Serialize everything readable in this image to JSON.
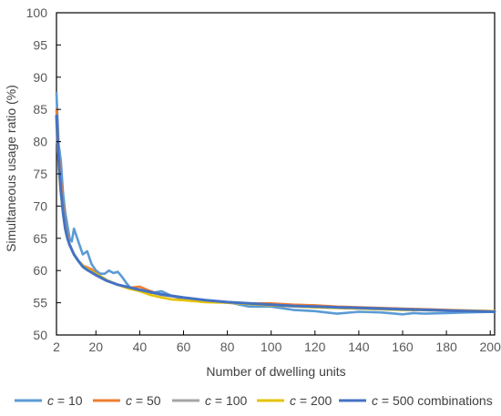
{
  "chart_data": {
    "type": "line",
    "title": "",
    "xlabel": "Number of dwelling units",
    "ylabel": "Simultaneous usage ratio (%)",
    "xlim": [
      2,
      202
    ],
    "ylim": [
      50,
      100
    ],
    "x_ticks": [
      2,
      20,
      40,
      60,
      80,
      100,
      120,
      140,
      160,
      180,
      200
    ],
    "y_ticks": [
      50,
      55,
      60,
      65,
      70,
      75,
      80,
      85,
      90,
      95,
      100
    ],
    "grid": false,
    "legend_position": "bottom",
    "series": [
      {
        "name": "c = 10",
        "legend_var": "c",
        "legend_rest": " = 10",
        "color": "#5B9BD5",
        "x": [
          2,
          3,
          4,
          5,
          6,
          7,
          8,
          9,
          10,
          12,
          14,
          16,
          18,
          20,
          22,
          24,
          26,
          28,
          30,
          32,
          34,
          36,
          40,
          45,
          50,
          55,
          60,
          70,
          80,
          90,
          100,
          110,
          120,
          125,
          130,
          140,
          150,
          160,
          165,
          170,
          180,
          190,
          202
        ],
        "y": [
          87.5,
          79.5,
          77,
          72,
          69,
          67,
          65,
          64.5,
          66.5,
          64.5,
          62.5,
          63,
          61,
          60,
          59.5,
          59.5,
          60,
          59.6,
          59.8,
          59,
          58,
          57.2,
          56.8,
          56.5,
          56.8,
          56,
          55.6,
          55.2,
          55.1,
          54.4,
          54.4,
          53.9,
          53.7,
          53.5,
          53.3,
          53.6,
          53.5,
          53.2,
          53.4,
          53.3,
          53.4,
          53.5,
          53.6
        ]
      },
      {
        "name": "c = 50",
        "legend_var": "c",
        "legend_rest": " = 50",
        "color": "#ED7D31",
        "x": [
          2,
          3,
          4,
          5,
          6,
          7,
          8,
          10,
          12,
          14,
          16,
          18,
          20,
          25,
          30,
          35,
          40,
          45,
          50,
          60,
          70,
          80,
          90,
          100,
          110,
          120,
          130,
          140,
          150,
          160,
          170,
          180,
          190,
          202
        ],
        "y": [
          85,
          78,
          74,
          70,
          67,
          65.5,
          64,
          62.5,
          61.5,
          60.8,
          60.5,
          60.2,
          59.6,
          58.5,
          57.8,
          57.3,
          57.5,
          56.8,
          56.2,
          55.8,
          55.4,
          55.1,
          54.9,
          54.9,
          54.7,
          54.6,
          54.4,
          54.3,
          54.2,
          54.1,
          54,
          53.9,
          53.8,
          53.7
        ]
      },
      {
        "name": "c = 100",
        "legend_var": "c",
        "legend_rest": " = 100",
        "color": "#A5A5A5",
        "x": [
          2,
          3,
          4,
          5,
          6,
          8,
          10,
          12,
          15,
          20,
          25,
          30,
          40,
          50,
          60,
          70,
          80,
          90,
          100,
          120,
          140,
          160,
          180,
          202
        ],
        "y": [
          84,
          76,
          72,
          69,
          66.5,
          64,
          62.5,
          61.5,
          60.5,
          59.5,
          58.5,
          57.8,
          57,
          56.2,
          55.8,
          55.3,
          55,
          54.8,
          54.6,
          54.3,
          54.1,
          53.9,
          53.8,
          53.7
        ]
      },
      {
        "name": "c = 200",
        "legend_var": "c",
        "legend_rest": " = 200",
        "color": "#E6C300",
        "x": [
          2,
          3,
          4,
          5,
          6,
          8,
          10,
          12,
          15,
          20,
          25,
          30,
          35,
          40,
          45,
          50,
          55,
          60,
          70,
          80,
          90,
          100,
          120,
          140,
          160,
          180,
          202
        ],
        "y": [
          83,
          76,
          72,
          69,
          66.5,
          64,
          62.5,
          61.5,
          60.5,
          59.5,
          58.5,
          57.8,
          57.2,
          56.8,
          56.2,
          55.8,
          55.5,
          55.4,
          55.1,
          55,
          54.8,
          54.6,
          54.3,
          54.1,
          53.9,
          53.8,
          53.7
        ]
      },
      {
        "name": "c = 500 combinations",
        "legend_var": "c",
        "legend_rest": " = 500 combinations",
        "color": "#4472C4",
        "x": [
          2,
          3,
          4,
          5,
          6,
          7,
          8,
          10,
          12,
          14,
          16,
          18,
          20,
          25,
          30,
          35,
          40,
          50,
          60,
          70,
          80,
          90,
          100,
          110,
          120,
          130,
          140,
          150,
          160,
          170,
          180,
          190,
          202
        ],
        "y": [
          84,
          77,
          72.5,
          69,
          66.5,
          65,
          64,
          62.5,
          61.5,
          60.6,
          60.1,
          59.7,
          59.3,
          58.4,
          57.8,
          57.4,
          57,
          56.3,
          55.8,
          55.4,
          55.1,
          54.9,
          54.7,
          54.5,
          54.4,
          54.3,
          54.2,
          54.1,
          54,
          53.9,
          53.8,
          53.7,
          53.6
        ]
      }
    ]
  }
}
